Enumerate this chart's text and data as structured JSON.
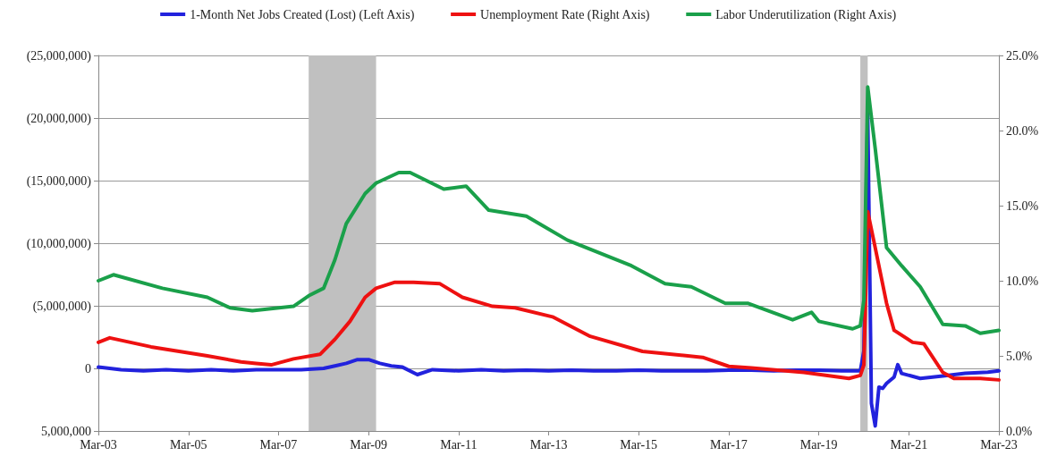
{
  "chart_data": {
    "type": "line",
    "legend": "top",
    "grid": "y",
    "marker": "none",
    "line_style": "solid",
    "xlim": [
      "2003-03",
      "2023-03"
    ],
    "xticks": [
      {
        "value": "2003-03",
        "label": "Mar-03"
      },
      {
        "value": "2005-03",
        "label": "Mar-05"
      },
      {
        "value": "2007-03",
        "label": "Mar-07"
      },
      {
        "value": "2009-03",
        "label": "Mar-09"
      },
      {
        "value": "2011-03",
        "label": "Mar-11"
      },
      {
        "value": "2013-03",
        "label": "Mar-13"
      },
      {
        "value": "2015-03",
        "label": "Mar-15"
      },
      {
        "value": "2017-03",
        "label": "Mar-17"
      },
      {
        "value": "2019-03",
        "label": "Mar-19"
      },
      {
        "value": "2021-03",
        "label": "Mar-21"
      },
      {
        "value": "2023-03",
        "label": "Mar-23"
      }
    ],
    "ylim": [
      5000000,
      -25000000
    ],
    "yticks": [
      {
        "value": -25000000,
        "label": "(25,000,000)"
      },
      {
        "value": -20000000,
        "label": "(20,000,000)"
      },
      {
        "value": -15000000,
        "label": "(15,000,000)"
      },
      {
        "value": -10000000,
        "label": "(10,000,000)"
      },
      {
        "value": -5000000,
        "label": "(5,000,000)"
      },
      0,
      {
        "value": 5000000,
        "label": "5,000,000"
      }
    ],
    "y2lim": [
      0,
      25
    ],
    "y2ticks": [
      {
        "value": 0,
        "label": "0.0%"
      },
      {
        "value": 5,
        "label": "5.0%"
      },
      {
        "value": 10,
        "label": "10.0%"
      },
      {
        "value": 15,
        "label": "15.0%"
      },
      {
        "value": 20,
        "label": "20.0%"
      },
      {
        "value": 25,
        "label": "25.0%"
      }
    ],
    "bands": [
      {
        "axis": "x",
        "from": "2007-11",
        "to": "2009-05",
        "color": "#c0c0c0"
      },
      {
        "axis": "x",
        "from": "2020-02",
        "to": "2020-04",
        "color": "#c0c0c0"
      }
    ],
    "series": [
      {
        "name": "1-Month Net Jobs Created (Lost) (Left Axis)",
        "color": "#2222dd",
        "x": [
          "2003-03",
          "2003-09",
          "2004-03",
          "2004-09",
          "2005-03",
          "2005-09",
          "2006-03",
          "2006-09",
          "2007-03",
          "2007-09",
          "2008-03",
          "2008-06",
          "2008-09",
          "2008-12",
          "2009-03",
          "2009-06",
          "2009-09",
          "2009-12",
          "2010-04",
          "2010-08",
          "2011-03",
          "2011-09",
          "2012-03",
          "2012-09",
          "2013-03",
          "2013-09",
          "2014-03",
          "2014-09",
          "2015-03",
          "2015-09",
          "2016-03",
          "2016-09",
          "2017-03",
          "2017-09",
          "2018-03",
          "2018-09",
          "2019-03",
          "2019-09",
          "2020-02",
          "2020-03",
          "2020-04",
          "2020-05",
          "2020-06",
          "2020-07",
          "2020-08",
          "2020-09",
          "2020-11",
          "2020-12",
          "2021-01",
          "2021-06",
          "2021-12",
          "2022-06",
          "2022-12",
          "2023-03"
        ],
        "values": [
          -100000,
          100000,
          200000,
          100000,
          200000,
          100000,
          200000,
          100000,
          100000,
          100000,
          0,
          -200000,
          -400000,
          -700000,
          -700000,
          -400000,
          -200000,
          -100000,
          500000,
          100000,
          200000,
          100000,
          200000,
          150000,
          200000,
          150000,
          200000,
          200000,
          150000,
          200000,
          200000,
          200000,
          150000,
          150000,
          200000,
          150000,
          150000,
          200000,
          200000,
          -1400000,
          -20500000,
          2800000,
          4600000,
          1500000,
          1600000,
          1200000,
          700000,
          -300000,
          400000,
          800000,
          600000,
          400000,
          300000,
          200000
        ]
      },
      {
        "name": "Unemployment Rate (Right Axis)",
        "color": "#ee1111",
        "axis": "y2",
        "x": [
          "2003-03",
          "2003-06",
          "2004-05",
          "2005-08",
          "2006-05",
          "2006-09",
          "2007-01",
          "2007-07",
          "2008-02",
          "2008-06",
          "2008-10",
          "2009-02",
          "2009-05",
          "2009-10",
          "2010-03",
          "2010-10",
          "2011-04",
          "2011-12",
          "2012-06",
          "2013-04",
          "2014-02",
          "2015-04",
          "2016-08",
          "2017-03",
          "2017-09",
          "2018-11",
          "2019-11",
          "2020-02",
          "2020-03",
          "2020-04",
          "2020-06",
          "2020-09",
          "2020-11",
          "2021-04",
          "2021-07",
          "2021-12",
          "2022-03",
          "2022-10",
          "2023-03"
        ],
        "values": [
          5.9,
          6.2,
          5.6,
          5.0,
          4.6,
          4.5,
          4.4,
          4.8,
          5.1,
          6.1,
          7.3,
          8.9,
          9.5,
          9.9,
          9.9,
          9.8,
          8.9,
          8.3,
          8.2,
          7.6,
          6.3,
          5.3,
          4.9,
          4.3,
          4.2,
          3.9,
          3.5,
          3.7,
          4.4,
          14.6,
          12.2,
          8.5,
          6.7,
          5.9,
          5.8,
          3.9,
          3.5,
          3.5,
          3.4
        ]
      },
      {
        "name": "Labor Underutilization (Right Axis)",
        "color": "#1aa04a",
        "axis": "y2",
        "x": [
          "2003-03",
          "2003-07",
          "2004-08",
          "2005-08",
          "2006-02",
          "2006-08",
          "2007-07",
          "2007-11",
          "2008-03",
          "2008-06",
          "2008-09",
          "2009-02",
          "2009-05",
          "2009-11",
          "2010-02",
          "2010-11",
          "2011-05",
          "2011-11",
          "2012-09",
          "2013-08",
          "2015-01",
          "2015-10",
          "2016-05",
          "2017-02",
          "2017-08",
          "2018-08",
          "2019-01",
          "2019-03",
          "2019-12",
          "2020-02",
          "2020-03",
          "2020-04",
          "2020-06",
          "2020-09",
          "2021-01",
          "2021-06",
          "2021-12",
          "2022-06",
          "2022-10",
          "2023-03"
        ],
        "values": [
          10.0,
          10.4,
          9.5,
          8.9,
          8.2,
          8.0,
          8.3,
          9.0,
          9.5,
          11.4,
          13.8,
          15.8,
          16.5,
          17.2,
          17.2,
          16.1,
          16.3,
          14.7,
          14.3,
          12.7,
          11.0,
          9.8,
          9.6,
          8.5,
          8.5,
          7.4,
          7.9,
          7.3,
          6.8,
          7.0,
          8.7,
          22.9,
          18.8,
          12.2,
          11.0,
          9.6,
          7.1,
          7.0,
          6.5,
          6.7
        ]
      }
    ]
  }
}
